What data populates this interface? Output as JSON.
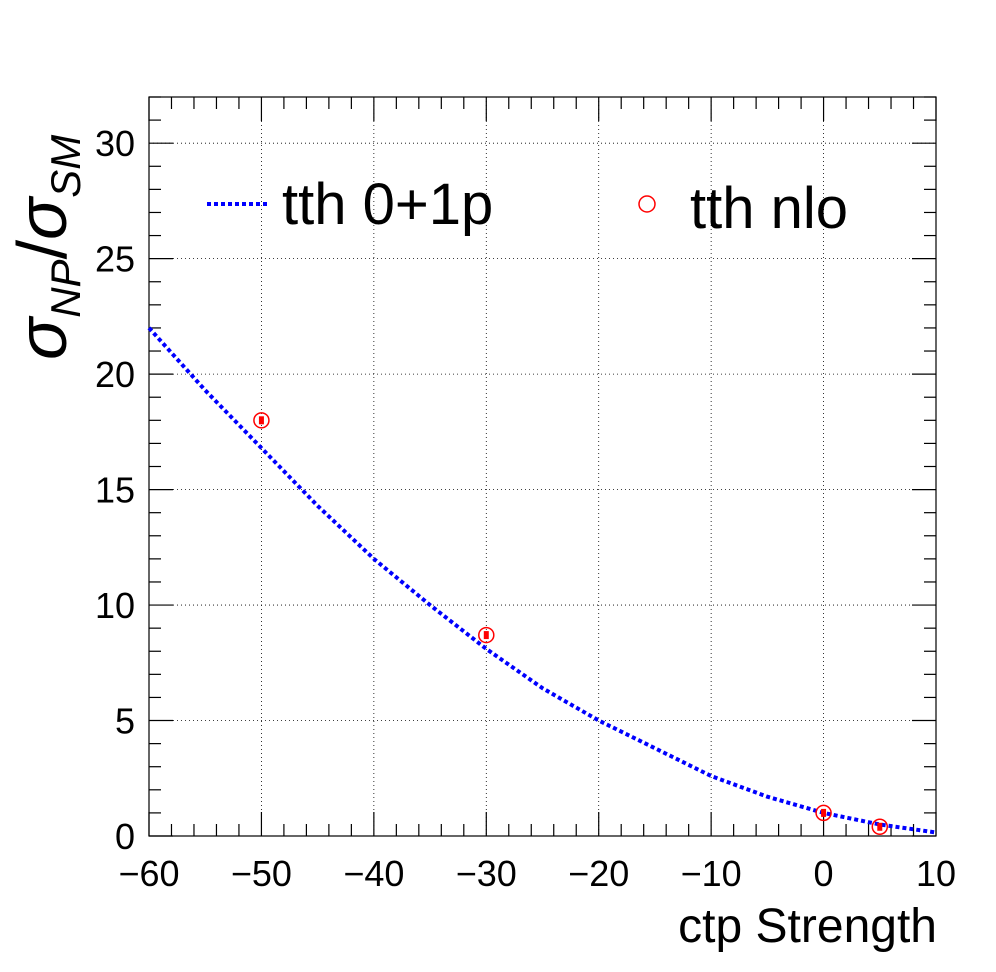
{
  "chart_data": {
    "type": "line",
    "xlabel": "ctp Strength",
    "ylabel": {
      "base": "σ",
      "numerator_sub": "NP",
      "separator": "/",
      "denominator_base": "σ",
      "denominator_sub": "SM"
    },
    "xlim": [
      -60,
      10
    ],
    "ylim": [
      0,
      32
    ],
    "x_ticks": [
      -60,
      -50,
      -40,
      -30,
      -20,
      -10,
      0,
      10
    ],
    "x_tick_labels": [
      "−60",
      "−50",
      "−40",
      "−30",
      "−20",
      "−10",
      "0",
      "10"
    ],
    "y_ticks": [
      0,
      5,
      10,
      15,
      20,
      25,
      30
    ],
    "y_tick_labels": [
      "0",
      "5",
      "10",
      "15",
      "20",
      "25",
      "30"
    ],
    "grid": true,
    "legend_position": "top",
    "series": [
      {
        "name": "tth 0+1p",
        "style": "dotted-line",
        "color": "#0000ff",
        "x": [
          -60,
          -55,
          -50,
          -45,
          -40,
          -35,
          -30,
          -25,
          -20,
          -15,
          -10,
          -5,
          0,
          5,
          10
        ],
        "y": [
          22.0,
          19.3,
          16.8,
          14.3,
          12.0,
          10.0,
          8.1,
          6.4,
          5.0,
          3.8,
          2.6,
          1.7,
          1.0,
          0.5,
          0.15
        ]
      },
      {
        "name": "tth nlo",
        "style": "open-circle",
        "color": "#ff0000",
        "x": [
          -50,
          -30,
          0,
          5
        ],
        "y": [
          18.0,
          8.7,
          1.0,
          0.4
        ]
      }
    ]
  }
}
